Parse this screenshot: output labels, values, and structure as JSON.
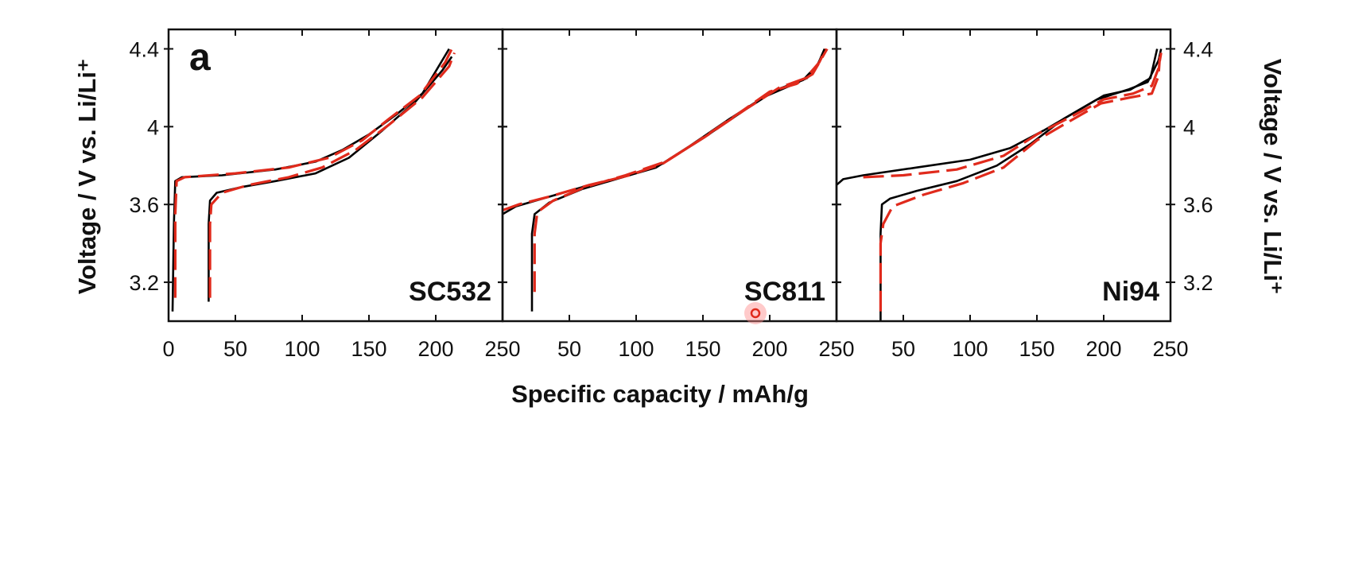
{
  "chart_data": {
    "type": "line",
    "panel_letter": "a",
    "xlabel": "Specific capacity / mAh/g",
    "ylabel_left": "Voltage / V vs. Li/Li⁺",
    "ylabel_right": "Voltage / V vs. Li/Li⁺",
    "xlim": [
      0,
      250
    ],
    "ylim": [
      3.0,
      4.5
    ],
    "x_ticks": [
      0,
      50,
      100,
      150,
      200,
      250
    ],
    "y_ticks": [
      3.2,
      3.6,
      4.0,
      4.4
    ],
    "y_tick_labels": [
      "3.2",
      "3.6",
      "4",
      "4.4"
    ],
    "x_tick_labels": [
      "0",
      "50",
      "100",
      "150",
      "200",
      "250"
    ],
    "colors": {
      "black_series": "#000000",
      "red_series": "#e02a1c",
      "axis": "#111111"
    },
    "panels": [
      {
        "name": "SC532",
        "series": [
          {
            "color": "black",
            "style": "solid",
            "points": [
              [
                3,
                3.05
              ],
              [
                4,
                3.5
              ],
              [
                5,
                3.72
              ],
              [
                10,
                3.74
              ],
              [
                40,
                3.75
              ],
              [
                80,
                3.78
              ],
              [
                110,
                3.82
              ],
              [
                130,
                3.88
              ],
              [
                150,
                3.96
              ],
              [
                170,
                4.06
              ],
              [
                190,
                4.17
              ],
              [
                210,
                4.4
              ]
            ]
          },
          {
            "color": "black",
            "style": "solid",
            "points": [
              [
                30,
                3.1
              ],
              [
                30,
                3.5
              ],
              [
                31,
                3.62
              ],
              [
                36,
                3.66
              ],
              [
                55,
                3.69
              ],
              [
                80,
                3.72
              ],
              [
                110,
                3.76
              ],
              [
                135,
                3.84
              ],
              [
                160,
                3.98
              ],
              [
                185,
                4.13
              ],
              [
                205,
                4.29
              ],
              [
                212,
                4.36
              ]
            ]
          },
          {
            "color": "red",
            "style": "dashed",
            "points": [
              [
                5,
                3.12
              ],
              [
                5,
                3.55
              ],
              [
                6,
                3.72
              ],
              [
                12,
                3.74
              ],
              [
                50,
                3.76
              ],
              [
                90,
                3.79
              ],
              [
                120,
                3.84
              ],
              [
                145,
                3.93
              ],
              [
                165,
                4.04
              ],
              [
                188,
                4.16
              ],
              [
                207,
                4.33
              ],
              [
                212,
                4.4
              ]
            ]
          },
          {
            "color": "red",
            "style": "dashed",
            "points": [
              [
                31,
                3.12
              ],
              [
                31,
                3.5
              ],
              [
                32,
                3.6
              ],
              [
                40,
                3.66
              ],
              [
                60,
                3.7
              ],
              [
                90,
                3.74
              ],
              [
                115,
                3.79
              ],
              [
                140,
                3.88
              ],
              [
                165,
                4.01
              ],
              [
                190,
                4.15
              ],
              [
                210,
                4.31
              ],
              [
                214,
                4.38
              ]
            ]
          }
        ]
      },
      {
        "name": "SC811",
        "series": [
          {
            "color": "black",
            "style": "solid",
            "points": [
              [
                0,
                3.55
              ],
              [
                10,
                3.59
              ],
              [
                30,
                3.63
              ],
              [
                60,
                3.69
              ],
              [
                90,
                3.74
              ],
              [
                115,
                3.79
              ],
              [
                140,
                3.9
              ],
              [
                170,
                4.04
              ],
              [
                195,
                4.15
              ],
              [
                215,
                4.21
              ],
              [
                228,
                4.25
              ],
              [
                235,
                4.31
              ],
              [
                242,
                4.4
              ]
            ]
          },
          {
            "color": "black",
            "style": "solid",
            "points": [
              [
                22,
                3.05
              ],
              [
                22,
                3.45
              ],
              [
                24,
                3.55
              ],
              [
                35,
                3.61
              ],
              [
                60,
                3.68
              ],
              [
                90,
                3.74
              ],
              [
                120,
                3.81
              ],
              [
                150,
                3.94
              ],
              [
                180,
                4.08
              ],
              [
                205,
                4.19
              ],
              [
                225,
                4.24
              ],
              [
                236,
                4.32
              ],
              [
                241,
                4.4
              ]
            ]
          },
          {
            "color": "red",
            "style": "dashed",
            "points": [
              [
                0,
                3.57
              ],
              [
                12,
                3.6
              ],
              [
                35,
                3.64
              ],
              [
                65,
                3.7
              ],
              [
                95,
                3.75
              ],
              [
                120,
                3.81
              ],
              [
                145,
                3.92
              ],
              [
                175,
                4.06
              ],
              [
                200,
                4.18
              ],
              [
                220,
                4.22
              ],
              [
                232,
                4.27
              ],
              [
                238,
                4.34
              ],
              [
                243,
                4.4
              ]
            ]
          },
          {
            "color": "red",
            "style": "dashed",
            "points": [
              [
                24,
                3.15
              ],
              [
                24,
                3.45
              ],
              [
                26,
                3.56
              ],
              [
                38,
                3.62
              ],
              [
                62,
                3.69
              ],
              [
                92,
                3.75
              ],
              [
                122,
                3.82
              ],
              [
                152,
                3.95
              ],
              [
                182,
                4.09
              ],
              [
                207,
                4.2
              ],
              [
                227,
                4.25
              ],
              [
                237,
                4.33
              ],
              [
                242,
                4.4
              ]
            ]
          }
        ]
      },
      {
        "name": "Ni94",
        "series": [
          {
            "color": "black",
            "style": "solid",
            "points": [
              [
                0,
                3.7
              ],
              [
                5,
                3.73
              ],
              [
                20,
                3.75
              ],
              [
                60,
                3.79
              ],
              [
                100,
                3.83
              ],
              [
                130,
                3.89
              ],
              [
                155,
                3.98
              ],
              [
                180,
                4.08
              ],
              [
                200,
                4.16
              ],
              [
                220,
                4.19
              ],
              [
                235,
                4.25
              ],
              [
                240,
                4.4
              ]
            ]
          },
          {
            "color": "black",
            "style": "solid",
            "points": [
              [
                33,
                3.0
              ],
              [
                33,
                3.45
              ],
              [
                34,
                3.6
              ],
              [
                40,
                3.63
              ],
              [
                60,
                3.67
              ],
              [
                90,
                3.72
              ],
              [
                120,
                3.8
              ],
              [
                145,
                3.91
              ],
              [
                170,
                4.04
              ],
              [
                195,
                4.14
              ],
              [
                218,
                4.19
              ],
              [
                233,
                4.23
              ],
              [
                241,
                4.34
              ],
              [
                243,
                4.4
              ]
            ]
          },
          {
            "color": "red",
            "style": "dashed",
            "points": [
              [
                20,
                3.74
              ],
              [
                50,
                3.75
              ],
              [
                90,
                3.78
              ],
              [
                125,
                3.85
              ],
              [
                150,
                3.96
              ],
              [
                178,
                4.06
              ],
              [
                200,
                4.14
              ],
              [
                222,
                4.17
              ],
              [
                236,
                4.21
              ],
              [
                241,
                4.3
              ],
              [
                243,
                4.38
              ]
            ]
          },
          {
            "color": "red",
            "style": "dashed",
            "points": [
              [
                33,
                3.05
              ],
              [
                33,
                3.4
              ],
              [
                35,
                3.5
              ],
              [
                42,
                3.59
              ],
              [
                65,
                3.65
              ],
              [
                95,
                3.71
              ],
              [
                125,
                3.79
              ],
              [
                150,
                3.93
              ],
              [
                175,
                4.03
              ],
              [
                198,
                4.12
              ],
              [
                220,
                4.15
              ],
              [
                236,
                4.17
              ],
              [
                241,
                4.26
              ],
              [
                242,
                4.36
              ]
            ]
          }
        ]
      }
    ]
  }
}
